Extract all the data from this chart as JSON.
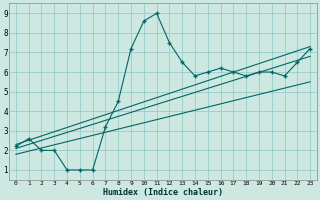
{
  "xlabel": "Humidex (Indice chaleur)",
  "bg_color": "#cce8e0",
  "grid_color": "#99cccc",
  "line_color": "#006666",
  "xlim": [
    -0.5,
    23.5
  ],
  "ylim": [
    0.5,
    9.5
  ],
  "xticks": [
    0,
    1,
    2,
    3,
    4,
    5,
    6,
    7,
    8,
    9,
    10,
    11,
    12,
    13,
    14,
    15,
    16,
    17,
    18,
    19,
    20,
    21,
    22,
    23
  ],
  "yticks": [
    1,
    2,
    3,
    4,
    5,
    6,
    7,
    8,
    9
  ],
  "scatter_x": [
    0,
    1,
    2,
    3,
    4,
    5,
    6,
    7,
    8,
    9,
    10,
    11,
    12,
    13,
    14,
    15,
    16,
    17,
    18,
    19,
    20,
    21,
    22,
    23
  ],
  "scatter_y": [
    2.2,
    2.6,
    2.0,
    2.0,
    1.0,
    1.0,
    1.0,
    3.2,
    4.5,
    7.2,
    8.6,
    9.0,
    7.5,
    6.5,
    5.8,
    6.0,
    6.2,
    6.0,
    5.8,
    6.0,
    6.0,
    5.8,
    6.5,
    7.2
  ],
  "line1_x": [
    0,
    23
  ],
  "line1_y": [
    2.1,
    6.8
  ],
  "line2_x": [
    0,
    23
  ],
  "line2_y": [
    1.8,
    5.5
  ],
  "line3_x": [
    0,
    23
  ],
  "line3_y": [
    2.3,
    7.3
  ]
}
